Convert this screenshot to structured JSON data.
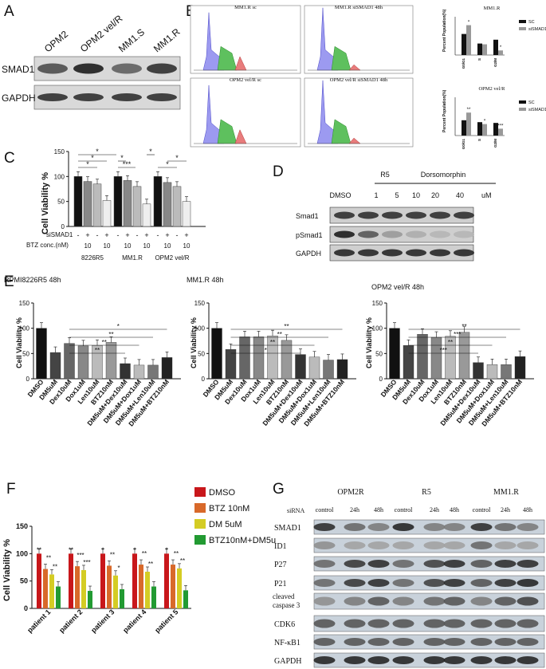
{
  "panels": {
    "A": {
      "label": "A",
      "lanes": [
        "OPM2",
        "OPM2 vel/R",
        "MM1.S",
        "MM1.R"
      ],
      "rows": [
        {
          "name": "SMAD1",
          "bands": [
            0.65,
            0.9,
            0.55,
            0.8
          ]
        },
        {
          "name": "GAPDH",
          "bands": [
            0.8,
            0.8,
            0.8,
            0.8
          ]
        }
      ]
    },
    "B": {
      "label": "B",
      "flow": [
        {
          "title": "MM1.R sc"
        },
        {
          "title": "MM1.R siSMAD1 48h"
        },
        {
          "title": "OPM2 vel/R sc"
        },
        {
          "title": "OPM2 vel/R siSMAD1 48h"
        }
      ],
      "bar_charts": [
        {
          "title": "MM1.R",
          "ylabel": "Percent Population(%)",
          "categories": [
            "G0/G1",
            "S",
            "G2/M"
          ],
          "series": [
            {
              "name": "SC",
              "values": [
                55,
                30,
                40
              ]
            },
            {
              "name": "siSMAD1",
              "values": [
                78,
                28,
                12
              ]
            }
          ],
          "ylim": [
            0,
            100
          ],
          "sig": [
            "*",
            "",
            "*"
          ]
        },
        {
          "title": "OPM2 vel/R",
          "ylabel": "Percent Population(%)",
          "categories": [
            "G0/G1",
            "S",
            "G2/M"
          ],
          "series": [
            {
              "name": "SC",
              "values": [
                40,
                35,
                33
              ]
            },
            {
              "name": "siSMAD1",
              "values": [
                60,
                30,
                18
              ]
            }
          ],
          "ylim": [
            0,
            100
          ],
          "sig": [
            "**",
            "*",
            "***"
          ]
        }
      ]
    },
    "C": {
      "label": "C",
      "ylabel": "Cell Viability %",
      "yticks": [
        "0",
        "50",
        "100",
        "150"
      ],
      "row_labels": [
        "siSMAD1",
        "BTZ conc.(nM)"
      ],
      "signs": [
        "-",
        "+",
        "-",
        "+"
      ],
      "conc": [
        "10",
        "10"
      ],
      "groups": [
        "8226R5",
        "MM1.R",
        "OPM2 vel/R"
      ],
      "values": [
        [
          100,
          90,
          85,
          52
        ],
        [
          100,
          92,
          80,
          45
        ],
        [
          100,
          88,
          80,
          50
        ]
      ],
      "sig": [
        "*",
        "*",
        "*",
        "***",
        "*",
        "*",
        "*",
        "*"
      ]
    },
    "D": {
      "label": "D",
      "r5_label": "R5",
      "drug_label": "Dorsomorphin",
      "lanes": [
        "DMSO",
        "1",
        "5",
        "10",
        "20",
        "40"
      ],
      "unit": "uM",
      "rows": [
        {
          "name": "Smad1",
          "bands": [
            0.8,
            0.8,
            0.8,
            0.8,
            0.8,
            0.8
          ]
        },
        {
          "name": "pSmad1",
          "bands": [
            0.9,
            0.6,
            0.25,
            0.15,
            0.1,
            0.1
          ]
        },
        {
          "name": "GAPDH",
          "bands": [
            0.85,
            0.85,
            0.85,
            0.85,
            0.85,
            0.85
          ]
        }
      ]
    },
    "E": {
      "label": "E",
      "ylabel": "Cell Viability %",
      "yticks": [
        "0",
        "50",
        "100",
        "150"
      ],
      "categories": [
        "DMSO",
        "DM5uM",
        "Dex10uM",
        "Dox1uM",
        "Len10uM",
        "BTZ10nM",
        "DM5uM+Dex10uM",
        "DM5uM+Dox1uM",
        "DM5uM+Len10uM",
        "DM5uM+BTZ10nM"
      ],
      "charts": [
        {
          "title": "RPMI8226R5 48h",
          "values": [
            100,
            52,
            70,
            65,
            66,
            72,
            30,
            27,
            27,
            42
          ],
          "sig": [
            "**",
            "**",
            "**",
            "*"
          ]
        },
        {
          "title": "MM1.R 48h",
          "values": [
            100,
            58,
            83,
            83,
            85,
            76,
            48,
            43,
            37,
            38
          ],
          "sig": [
            "*",
            "**",
            "**",
            "**"
          ]
        },
        {
          "title": "OPM2 vel/R 48h",
          "values": [
            100,
            66,
            88,
            82,
            84,
            92,
            32,
            28,
            28,
            44
          ],
          "sig": [
            "***",
            "**",
            "***",
            "**"
          ]
        }
      ]
    },
    "F": {
      "label": "F",
      "ylabel": "Cell Viability %",
      "yticks": [
        "0",
        "50",
        "100",
        "150"
      ],
      "groups": [
        "patient 1",
        "patient 2",
        "patient 3",
        "patient 4",
        "patient 5"
      ],
      "series": [
        {
          "name": "DMSO",
          "color": "#c8171b",
          "values": [
            100,
            100,
            100,
            100,
            100
          ]
        },
        {
          "name": "BTZ 10nM",
          "color": "#d8692a",
          "values": [
            72,
            77,
            78,
            80,
            80
          ]
        },
        {
          "name": "DM 5uM",
          "color": "#d4cc24",
          "values": [
            62,
            70,
            60,
            67,
            73
          ]
        },
        {
          "name": "BTZ10nM+DM5u",
          "color": "#229a32",
          "values": [
            40,
            32,
            35,
            40,
            33
          ]
        }
      ],
      "sig": [
        [
          "**",
          "**",
          "**"
        ],
        [
          "**",
          "***",
          "***"
        ],
        [
          "*",
          "**",
          "*"
        ],
        [
          "*",
          "**",
          "**"
        ],
        [
          "*",
          "**",
          "**"
        ]
      ]
    },
    "G": {
      "label": "G",
      "cells": [
        "OPM2R",
        "R5",
        "MM1.R"
      ],
      "sirna_label": "siRNA",
      "lanes": [
        "control",
        "24h",
        "48h",
        "control",
        "24h",
        "48h",
        "control",
        "24h",
        "48h"
      ],
      "rows": [
        {
          "name": "SMAD1",
          "bands": [
            0.8,
            0.5,
            0.4,
            0.85,
            0.4,
            0.4,
            0.8,
            0.5,
            0.4
          ]
        },
        {
          "name": "ID1",
          "bands": [
            0.3,
            0.2,
            0.2,
            0.2,
            0.2,
            0.2,
            0.5,
            0.2,
            0.2
          ]
        },
        {
          "name": "P27",
          "bands": [
            0.5,
            0.75,
            0.8,
            0.5,
            0.7,
            0.8,
            0.6,
            0.8,
            0.8
          ]
        },
        {
          "name": "P21",
          "bands": [
            0.5,
            0.75,
            0.8,
            0.5,
            0.7,
            0.8,
            0.6,
            0.8,
            0.85
          ]
        },
        {
          "name": "cleaved caspase 3",
          "bands": [
            0.3,
            0.4,
            0.6,
            0.4,
            0.5,
            0.6,
            0.4,
            0.6,
            0.7
          ]
        },
        {
          "name": "CDK6",
          "bands": [
            0.6,
            0.6,
            0.6,
            0.6,
            0.6,
            0.6,
            0.6,
            0.6,
            0.6
          ]
        },
        {
          "name": "NF-κB1",
          "bands": [
            0.6,
            0.6,
            0.6,
            0.6,
            0.6,
            0.6,
            0.6,
            0.6,
            0.6
          ]
        },
        {
          "name": "GAPDH",
          "bands": [
            0.85,
            0.85,
            0.85,
            0.85,
            0.85,
            0.85,
            0.85,
            0.85,
            0.85
          ]
        }
      ]
    }
  },
  "chart_data": [
    {
      "type": "bar",
      "panel": "B",
      "title": "MM1.R",
      "ylabel": "Percent Population(%)",
      "categories": [
        "G0/G1",
        "S",
        "G2/M"
      ],
      "series": [
        {
          "name": "SC",
          "values": [
            55,
            30,
            40
          ]
        },
        {
          "name": "siSMAD1",
          "values": [
            78,
            28,
            12
          ]
        }
      ],
      "ylim": [
        0,
        100
      ]
    },
    {
      "type": "bar",
      "panel": "B",
      "title": "OPM2 vel/R",
      "ylabel": "Percent Population(%)",
      "categories": [
        "G0/G1",
        "S",
        "G2/M"
      ],
      "series": [
        {
          "name": "SC",
          "values": [
            40,
            35,
            33
          ]
        },
        {
          "name": "siSMAD1",
          "values": [
            60,
            30,
            18
          ]
        }
      ],
      "ylim": [
        0,
        100
      ]
    },
    {
      "type": "bar",
      "panel": "C",
      "ylabel": "Cell Viability %",
      "categories": [
        "8226R5",
        "MM1.R",
        "OPM2 vel/R"
      ],
      "values": [
        [
          100,
          90,
          85,
          52
        ],
        [
          100,
          92,
          80,
          45
        ],
        [
          100,
          88,
          80,
          50
        ]
      ],
      "ylim": [
        0,
        150
      ]
    },
    {
      "type": "bar",
      "panel": "E",
      "title": "RPMI8226R5 48h",
      "ylabel": "Cell Viability %",
      "categories": [
        "DMSO",
        "DM5uM",
        "Dex10uM",
        "Dox1uM",
        "Len10uM",
        "BTZ10nM",
        "DM5uM+Dex10uM",
        "DM5uM+Dox1uM",
        "DM5uM+Len10uM",
        "DM5uM+BTZ10nM"
      ],
      "values": [
        100,
        52,
        70,
        65,
        66,
        72,
        30,
        27,
        27,
        42
      ],
      "ylim": [
        0,
        150
      ]
    },
    {
      "type": "bar",
      "panel": "E",
      "title": "MM1.R 48h",
      "ylabel": "Cell Viability %",
      "categories": [
        "DMSO",
        "DM5uM",
        "Dex10uM",
        "Dox1uM",
        "Len10uM",
        "BTZ10nM",
        "DM5uM+Dex10uM",
        "DM5uM+Dox1uM",
        "DM5uM+Len10uM",
        "DM5uM+BTZ10nM"
      ],
      "values": [
        100,
        58,
        83,
        83,
        85,
        76,
        48,
        43,
        37,
        38
      ],
      "ylim": [
        0,
        150
      ]
    },
    {
      "type": "bar",
      "panel": "E",
      "title": "OPM2 vel/R 48h",
      "ylabel": "Cell Viability %",
      "categories": [
        "DMSO",
        "DM5uM",
        "Dex10uM",
        "Dox1uM",
        "Len10uM",
        "BTZ10nM",
        "DM5uM+Dex10uM",
        "DM5uM+Dox1uM",
        "DM5uM+Len10uM",
        "DM5uM+BTZ10nM"
      ],
      "values": [
        100,
        66,
        88,
        82,
        84,
        92,
        32,
        28,
        28,
        44
      ],
      "ylim": [
        0,
        150
      ]
    },
    {
      "type": "bar",
      "panel": "F",
      "ylabel": "Cell Viability %",
      "categories": [
        "patient 1",
        "patient 2",
        "patient 3",
        "patient 4",
        "patient 5"
      ],
      "series": [
        {
          "name": "DMSO",
          "values": [
            100,
            100,
            100,
            100,
            100
          ]
        },
        {
          "name": "BTZ 10nM",
          "values": [
            72,
            77,
            78,
            80,
            80
          ]
        },
        {
          "name": "DM 5uM",
          "values": [
            62,
            70,
            60,
            67,
            73
          ]
        },
        {
          "name": "BTZ10nM+DM5u",
          "values": [
            40,
            32,
            35,
            40,
            33
          ]
        }
      ],
      "ylim": [
        0,
        150
      ],
      "legend": "right"
    }
  ]
}
